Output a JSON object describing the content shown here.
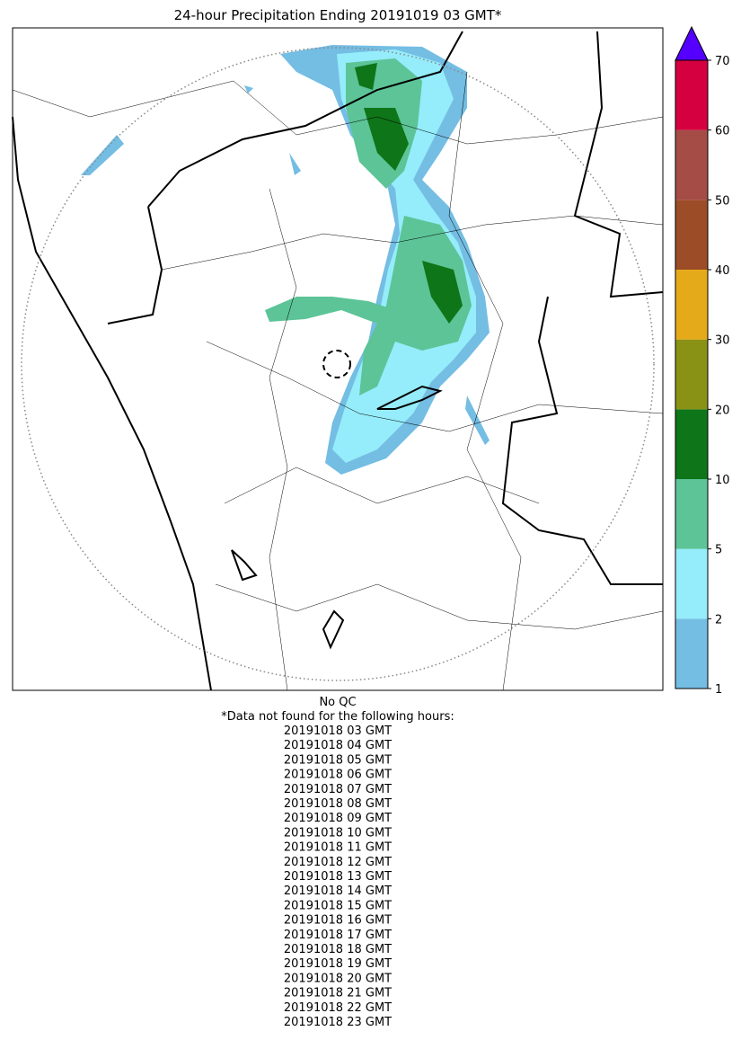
{
  "title": "24-hour Precipitation Ending 20191019 03 GMT*",
  "colorbar": {
    "levels": [
      1,
      2,
      5,
      10,
      20,
      30,
      40,
      50,
      60,
      70
    ],
    "colors": [
      "#74bde3",
      "#95ecfa",
      "#5cc497",
      "#0e7518",
      "#8a9215",
      "#e5aa19",
      "#9c4c27",
      "#a54c46",
      "#d5003f"
    ],
    "extend_color": "#5500ff"
  },
  "footer": {
    "qc": "No QC",
    "note": "*Data not found for the following hours:",
    "hours": [
      "20191018 03 GMT",
      "20191018 04 GMT",
      "20191018 05 GMT",
      "20191018 06 GMT",
      "20191018 07 GMT",
      "20191018 08 GMT",
      "20191018 09 GMT",
      "20191018 10 GMT",
      "20191018 11 GMT",
      "20191018 12 GMT",
      "20191018 13 GMT",
      "20191018 14 GMT",
      "20191018 15 GMT",
      "20191018 16 GMT",
      "20191018 17 GMT",
      "20191018 18 GMT",
      "20191018 19 GMT",
      "20191018 20 GMT",
      "20191018 21 GMT",
      "20191018 22 GMT",
      "20191018 23 GMT"
    ]
  }
}
